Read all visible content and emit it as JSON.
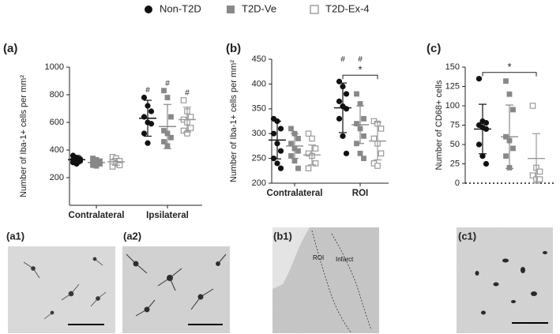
{
  "legend": [
    {
      "name": "Non-T2D",
      "color": "#111111",
      "marker": "circle"
    },
    {
      "name": "T2D-Ve",
      "color": "#888888",
      "marker": "square"
    },
    {
      "name": "T2D-Ex-4",
      "color": "#999999",
      "marker": "open-square"
    }
  ],
  "chart_data": [
    {
      "type": "dot",
      "label": "(a)",
      "y_label": "Number of Iba-1+ cells per mm²",
      "categories": [
        "Contralateral",
        "Ipsilateral"
      ],
      "ylim": [
        0,
        1000
      ],
      "yticks": [
        200,
        400,
        600,
        800,
        1000
      ],
      "series": [
        {
          "values": [
            [
              360,
              345,
              335,
              330,
              325,
              320,
              310,
              300
            ],
            [
              780,
              720,
              680,
              640,
              600,
              590,
              520,
              450
            ]
          ],
          "mean": [
            330,
            630
          ],
          "sd": [
            30,
            130
          ]
        },
        {
          "values": [
            [
              340,
              330,
              320,
              315,
              305,
              300,
              290,
              285
            ],
            [
              830,
              780,
              640,
              540,
              520,
              490,
              460,
              430
            ]
          ],
          "mean": [
            310,
            570
          ],
          "sd": [
            20,
            160
          ]
        },
        {
          "values": [
            [
              350,
              340,
              320,
              310,
              300,
              290,
              280
            ],
            [
              760,
              680,
              640,
              620,
              600,
              560,
              540,
              520
            ]
          ],
          "mean": [
            315,
            620
          ],
          "sd": [
            25,
            90
          ]
        }
      ],
      "annotations": [
        {
          "text": "#",
          "category": 1,
          "series": 0
        },
        {
          "text": "#",
          "category": 1,
          "series": 1
        },
        {
          "text": "#",
          "category": 1,
          "series": 2
        }
      ],
      "significance": []
    },
    {
      "type": "dot",
      "label": "(b)",
      "y_label": "Number of Iba-1+ cells per mm²",
      "categories": [
        "Contralateral",
        "ROI"
      ],
      "ylim": [
        200,
        450
      ],
      "yticks": [
        200,
        250,
        300,
        350,
        400,
        450
      ],
      "series": [
        {
          "values": [
            [
              330,
              325,
              310,
              300,
              280,
              265,
              250,
              240,
              230
            ],
            [
              405,
              395,
              380,
              365,
              355,
              350,
              330,
              295,
              260
            ]
          ],
          "mean": [
            287,
            352
          ],
          "sd": [
            38,
            50
          ]
        },
        {
          "values": [
            [
              310,
              300,
              290,
              280,
              270,
              265,
              255,
              245,
              230
            ],
            [
              380,
              360,
              330,
              320,
              310,
              295,
              280,
              260,
              250
            ]
          ],
          "mean": [
            275,
            318
          ],
          "sd": [
            25,
            38
          ]
        },
        {
          "values": [
            [
              300,
              290,
              270,
              260,
              255,
              240,
              230
            ],
            [
              325,
              320,
              310,
              290,
              280,
              260,
              240,
              235
            ]
          ],
          "mean": [
            257,
            285
          ],
          "sd": [
            20,
            38
          ]
        }
      ],
      "annotations": [
        {
          "text": "#",
          "category": 1,
          "series": 0
        },
        {
          "text": "#",
          "category": 1,
          "series": 1
        }
      ],
      "significance": [
        {
          "text": "*",
          "category": 1,
          "from": 0,
          "to": 2
        }
      ]
    },
    {
      "type": "dot",
      "label": "(c)",
      "y_label": "Number of CD68+ cells",
      "categories": [
        null
      ],
      "ylim": [
        0,
        150
      ],
      "yticks": [
        0,
        25,
        50,
        75,
        100,
        125,
        150
      ],
      "zero_line": "dotted",
      "series": [
        {
          "values": [
            [
              135,
              80,
              78,
              75,
              72,
              70,
              50,
              35,
              25
            ]
          ],
          "mean": [
            70
          ],
          "sd": [
            32
          ]
        },
        {
          "values": [
            [
              132,
              115,
              95,
              60,
              55,
              45,
              35,
              20
            ]
          ],
          "mean": [
            60
          ],
          "sd": [
            41
          ]
        },
        {
          "values": [
            [
              100,
              20,
              15,
              10,
              5,
              5
            ]
          ],
          "mean": [
            32
          ],
          "sd": [
            32
          ]
        }
      ],
      "annotations": [],
      "significance": [
        {
          "text": "*",
          "category": 0,
          "from": 0,
          "to": 2
        }
      ]
    }
  ],
  "images": [
    {
      "label": "(a1)"
    },
    {
      "label": "(a2)"
    },
    {
      "label": "(b1)",
      "annotations": [
        "ROI",
        "Infarct"
      ]
    },
    {
      "label": "(c1)"
    }
  ]
}
